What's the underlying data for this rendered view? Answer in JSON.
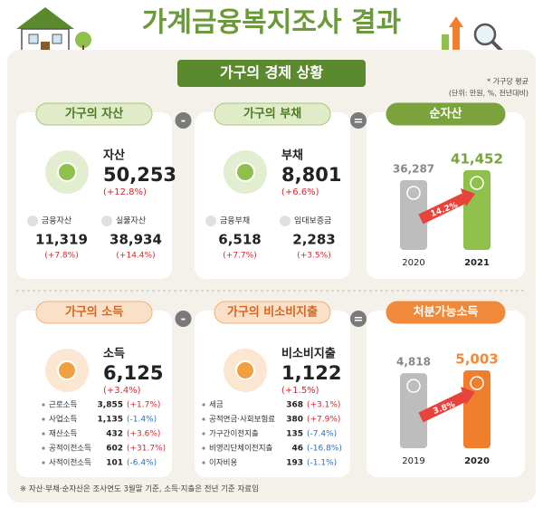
{
  "header": {
    "title": "가계금융복지조사 결과",
    "banner": "가구의 경제 상황",
    "note_basis": "* 가구당 평균",
    "note_unit": "(단위: 만원, %, 전년대비)"
  },
  "operators": [
    "-",
    "=",
    "-",
    "="
  ],
  "assets": {
    "header": "가구의 자산",
    "label": "자산",
    "value": "50,253",
    "change": "(+12.8%)",
    "items": [
      {
        "label": "금융자산",
        "value": "11,319",
        "change": "(+7.8%)"
      },
      {
        "label": "실물자산",
        "value": "38,934",
        "change": "(+14.4%)"
      }
    ]
  },
  "debt": {
    "header": "가구의 부채",
    "label": "부채",
    "value": "8,801",
    "change": "(+6.6%)",
    "items": [
      {
        "label": "금융부채",
        "value": "6,518",
        "change": "(+7.7%)"
      },
      {
        "label": "임대보증금",
        "value": "2,283",
        "change": "(+3.5%)"
      }
    ]
  },
  "net_assets": {
    "header": "순자산",
    "growth": "14.2%",
    "bars": [
      {
        "year": "2020",
        "value": 36287,
        "label": "36,287",
        "color": "#bdbdbd"
      },
      {
        "year": "2021",
        "value": 41452,
        "label": "41,452",
        "color": "#8fc04c"
      }
    ]
  },
  "income": {
    "header": "가구의 소득",
    "label": "소득",
    "value": "6,125",
    "change": "(+3.4%)",
    "items": [
      {
        "label": "근로소득",
        "value": "3,855",
        "change": "(+1.7%)"
      },
      {
        "label": "사업소득",
        "value": "1,135",
        "change": "(-1.4%)"
      },
      {
        "label": "재산소득",
        "value": "432",
        "change": "(+3.6%)"
      },
      {
        "label": "공적이전소득",
        "value": "602",
        "change": "(+31.7%)"
      },
      {
        "label": "사적이전소득",
        "value": "101",
        "change": "(-6.4%)"
      }
    ]
  },
  "non_consumption": {
    "header": "가구의 비소비지출",
    "label": "비소비지출",
    "value": "1,122",
    "change": "(+1.5%)",
    "items": [
      {
        "label": "세금",
        "value": "368",
        "change": "(+3.1%)"
      },
      {
        "label": "공적연금·사회보험료",
        "value": "380",
        "change": "(+7.9%)"
      },
      {
        "label": "가구간이전지출",
        "value": "135",
        "change": "(-7.4%)"
      },
      {
        "label": "비영리단체이전지출",
        "value": "46",
        "change": "(-16.8%)"
      },
      {
        "label": "이자비용",
        "value": "193",
        "change": "(-1.1%)"
      }
    ]
  },
  "disposable_income": {
    "header": "처분가능소득",
    "growth": "3.8%",
    "bars": [
      {
        "year": "2019",
        "value": 4818,
        "label": "4,818",
        "color": "#bdbdbd"
      },
      {
        "year": "2020",
        "value": 5003,
        "label": "5,003",
        "color": "#f07f2d"
      }
    ]
  },
  "footnote": "※ 자산·부채·순자산은 조사연도 3월말 기준, 소득·지출은 전년 기준 자료임"
}
